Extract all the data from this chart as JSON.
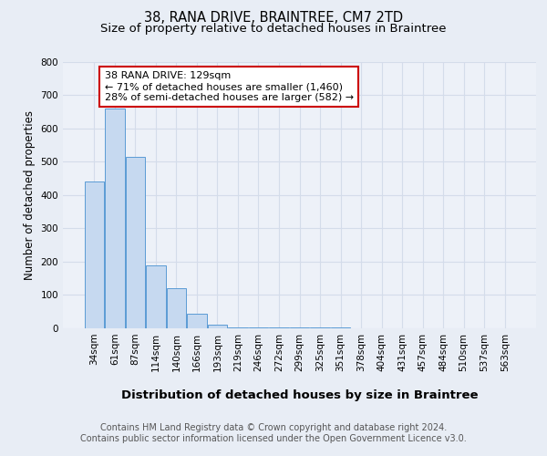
{
  "title": "38, RANA DRIVE, BRAINTREE, CM7 2TD",
  "subtitle": "Size of property relative to detached houses in Braintree",
  "xlabel": "Distribution of detached houses by size in Braintree",
  "ylabel": "Number of detached properties",
  "categories": [
    "34sqm",
    "61sqm",
    "87sqm",
    "114sqm",
    "140sqm",
    "166sqm",
    "193sqm",
    "219sqm",
    "246sqm",
    "272sqm",
    "299sqm",
    "325sqm",
    "351sqm",
    "378sqm",
    "404sqm",
    "431sqm",
    "457sqm",
    "484sqm",
    "510sqm",
    "537sqm",
    "563sqm"
  ],
  "values": [
    440,
    660,
    515,
    190,
    120,
    45,
    10,
    2,
    2,
    2,
    2,
    2,
    2,
    0,
    0,
    0,
    0,
    0,
    0,
    0,
    0
  ],
  "bar_color": "#c6d9f0",
  "bar_edge_color": "#5b9bd5",
  "annotation_line1": "38 RANA DRIVE: 129sqm",
  "annotation_line2": "← 71% of detached houses are smaller (1,460)",
  "annotation_line3": "28% of semi-detached houses are larger (582) →",
  "annotation_box_color": "#ffffff",
  "annotation_box_edgecolor": "#cc0000",
  "ylim": [
    0,
    800
  ],
  "yticks": [
    0,
    100,
    200,
    300,
    400,
    500,
    600,
    700,
    800
  ],
  "grid_color": "#d4dcea",
  "background_color": "#e8edf5",
  "plot_bg_color": "#edf1f8",
  "footer_line1": "Contains HM Land Registry data © Crown copyright and database right 2024.",
  "footer_line2": "Contains public sector information licensed under the Open Government Licence v3.0.",
  "title_fontsize": 10.5,
  "subtitle_fontsize": 9.5,
  "xlabel_fontsize": 9.5,
  "ylabel_fontsize": 8.5,
  "tick_fontsize": 7.5,
  "annotation_fontsize": 8,
  "footer_fontsize": 7
}
